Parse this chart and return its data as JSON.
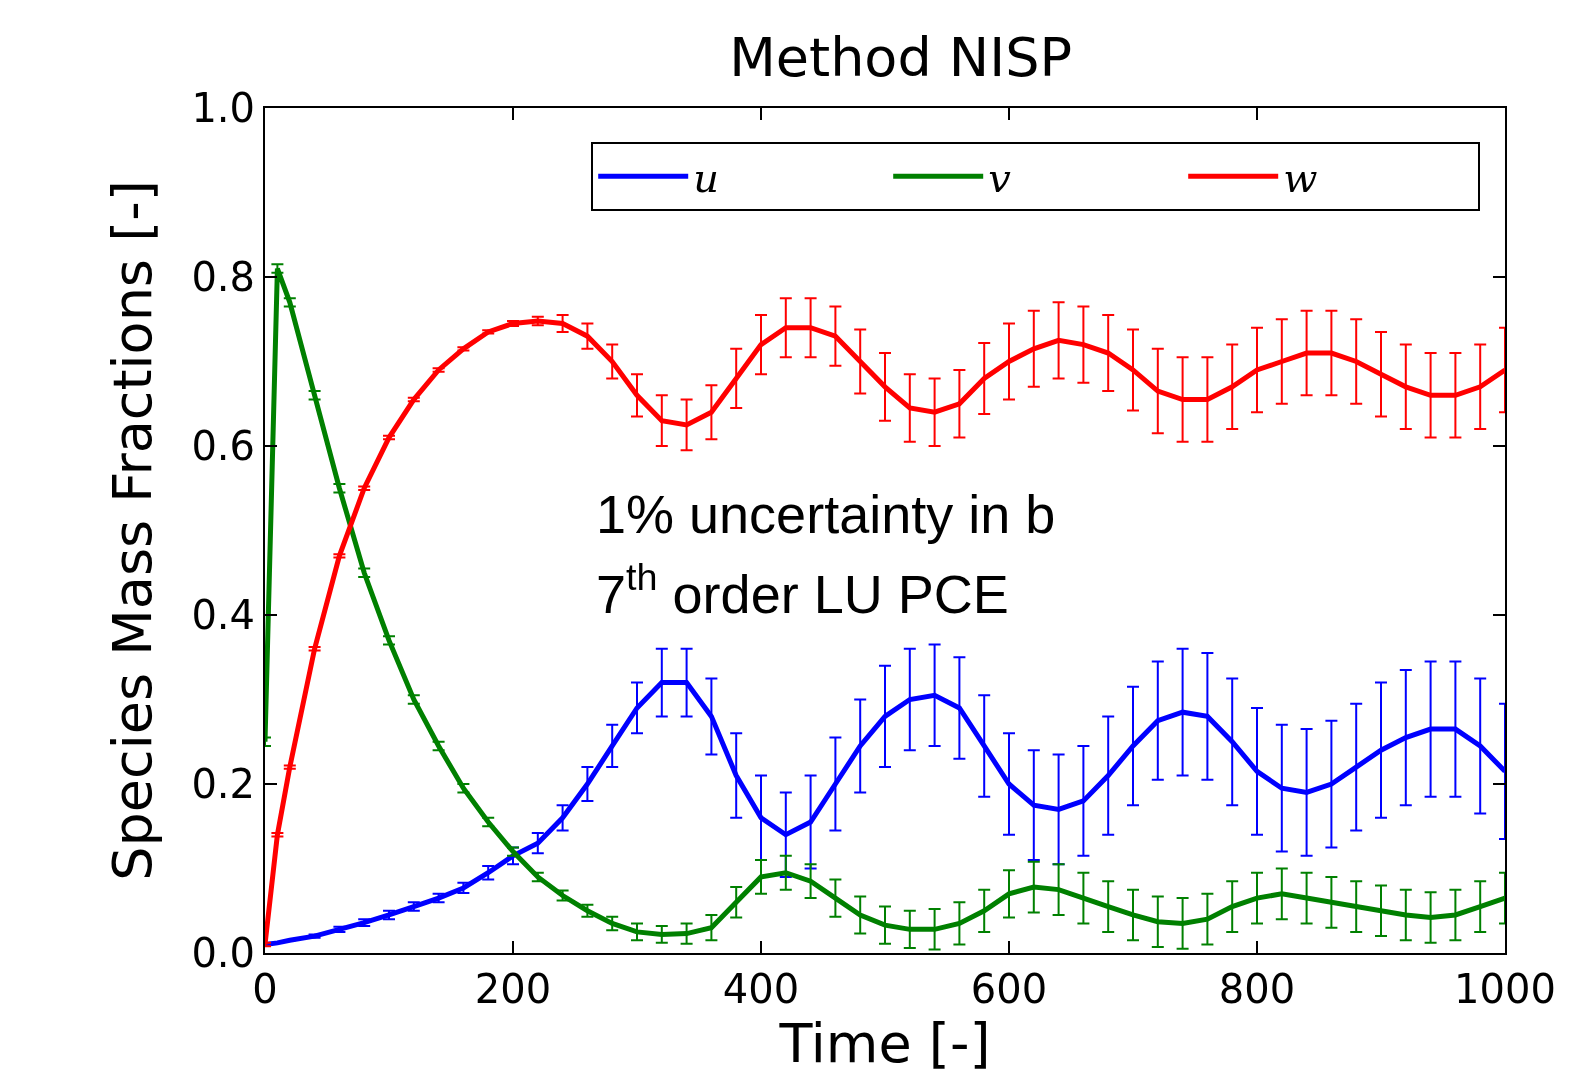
{
  "chart_data": {
    "type": "line",
    "title": "Method NISP",
    "xlabel": "Time [-]",
    "ylabel": "Species Mass Fractions [-]",
    "annotations": [
      "1% uncertainty in b",
      "7$^{th}$ order LU PCE"
    ],
    "x": [
      0,
      10,
      20,
      40,
      60,
      80,
      100,
      120,
      140,
      160,
      180,
      200,
      220,
      240,
      260,
      280,
      300,
      320,
      340,
      360,
      380,
      400,
      420,
      440,
      460,
      480,
      500,
      520,
      540,
      560,
      580,
      600,
      620,
      640,
      660,
      680,
      700,
      720,
      740,
      760,
      780,
      800,
      820,
      840,
      860,
      880,
      900,
      920,
      940,
      960,
      980,
      1000
    ],
    "series": [
      {
        "name": "u",
        "color": "#0000ff",
        "values": [
          0.01,
          0.012,
          0.015,
          0.02,
          0.028,
          0.036,
          0.045,
          0.055,
          0.065,
          0.077,
          0.095,
          0.115,
          0.13,
          0.16,
          0.2,
          0.245,
          0.29,
          0.32,
          0.32,
          0.28,
          0.21,
          0.16,
          0.14,
          0.155,
          0.2,
          0.245,
          0.28,
          0.3,
          0.305,
          0.29,
          0.245,
          0.2,
          0.175,
          0.17,
          0.18,
          0.21,
          0.245,
          0.275,
          0.285,
          0.28,
          0.25,
          0.215,
          0.195,
          0.19,
          0.2,
          0.22,
          0.24,
          0.255,
          0.265,
          0.265,
          0.245,
          0.215
        ],
        "errors": [
          0,
          0,
          0,
          0.002,
          0.003,
          0.004,
          0.005,
          0.005,
          0.005,
          0.006,
          0.008,
          0.01,
          0.012,
          0.015,
          0.02,
          0.025,
          0.03,
          0.04,
          0.04,
          0.045,
          0.05,
          0.05,
          0.05,
          0.055,
          0.055,
          0.055,
          0.06,
          0.06,
          0.06,
          0.06,
          0.06,
          0.06,
          0.065,
          0.065,
          0.065,
          0.07,
          0.07,
          0.07,
          0.075,
          0.075,
          0.075,
          0.075,
          0.075,
          0.075,
          0.075,
          0.075,
          0.08,
          0.08,
          0.08,
          0.08,
          0.08,
          0.08
        ]
      },
      {
        "name": "v",
        "color": "#008000",
        "values": [
          0.25,
          0.81,
          0.77,
          0.66,
          0.55,
          0.45,
          0.37,
          0.3,
          0.245,
          0.195,
          0.155,
          0.12,
          0.09,
          0.068,
          0.05,
          0.035,
          0.025,
          0.022,
          0.023,
          0.03,
          0.06,
          0.09,
          0.095,
          0.085,
          0.065,
          0.045,
          0.033,
          0.028,
          0.028,
          0.035,
          0.05,
          0.07,
          0.078,
          0.075,
          0.065,
          0.055,
          0.045,
          0.037,
          0.035,
          0.04,
          0.055,
          0.065,
          0.07,
          0.065,
          0.06,
          0.055,
          0.05,
          0.045,
          0.042,
          0.045,
          0.055,
          0.065
        ],
        "errors": [
          0.005,
          0.005,
          0.005,
          0.005,
          0.005,
          0.005,
          0.005,
          0.005,
          0.005,
          0.005,
          0.005,
          0.005,
          0.005,
          0.006,
          0.007,
          0.008,
          0.01,
          0.01,
          0.012,
          0.015,
          0.018,
          0.02,
          0.02,
          0.02,
          0.022,
          0.022,
          0.022,
          0.022,
          0.024,
          0.025,
          0.025,
          0.028,
          0.03,
          0.03,
          0.03,
          0.03,
          0.03,
          0.03,
          0.03,
          0.03,
          0.03,
          0.03,
          0.03,
          0.03,
          0.03,
          0.03,
          0.03,
          0.03,
          0.03,
          0.03,
          0.03,
          0.03
        ]
      },
      {
        "name": "w",
        "color": "#ff0000",
        "values": [
          0.01,
          0.14,
          0.22,
          0.36,
          0.47,
          0.55,
          0.61,
          0.655,
          0.69,
          0.715,
          0.735,
          0.745,
          0.748,
          0.745,
          0.73,
          0.7,
          0.66,
          0.63,
          0.625,
          0.64,
          0.68,
          0.72,
          0.74,
          0.74,
          0.73,
          0.7,
          0.67,
          0.645,
          0.64,
          0.65,
          0.68,
          0.7,
          0.715,
          0.725,
          0.72,
          0.71,
          0.69,
          0.665,
          0.655,
          0.655,
          0.67,
          0.69,
          0.7,
          0.71,
          0.71,
          0.7,
          0.685,
          0.67,
          0.66,
          0.66,
          0.67,
          0.69
        ],
        "errors": [
          0.002,
          0.002,
          0.002,
          0.002,
          0.002,
          0.002,
          0.002,
          0.002,
          0.002,
          0.002,
          0.002,
          0.003,
          0.005,
          0.01,
          0.015,
          0.02,
          0.025,
          0.03,
          0.03,
          0.032,
          0.035,
          0.035,
          0.035,
          0.035,
          0.035,
          0.038,
          0.04,
          0.04,
          0.04,
          0.04,
          0.042,
          0.045,
          0.045,
          0.045,
          0.045,
          0.045,
          0.048,
          0.05,
          0.05,
          0.05,
          0.05,
          0.05,
          0.05,
          0.05,
          0.05,
          0.05,
          0.05,
          0.05,
          0.05,
          0.05,
          0.05,
          0.05
        ]
      }
    ],
    "xlim": [
      0,
      1000
    ],
    "xticks": [
      0,
      200,
      400,
      600,
      800,
      1000
    ],
    "ylim": [
      0,
      1.0
    ],
    "yticks": [
      {
        "value": 0,
        "label": "0.0"
      },
      {
        "value": 0.2,
        "label": "0.2"
      },
      {
        "value": 0.4,
        "label": "0.4"
      },
      {
        "value": 0.6,
        "label": "0.6"
      },
      {
        "value": 0.8,
        "label": "0.8"
      },
      {
        "value": 1.0,
        "label": "1.0"
      }
    ],
    "grid": false,
    "legend": "top right",
    "marker": "none",
    "line_style": "solid"
  }
}
